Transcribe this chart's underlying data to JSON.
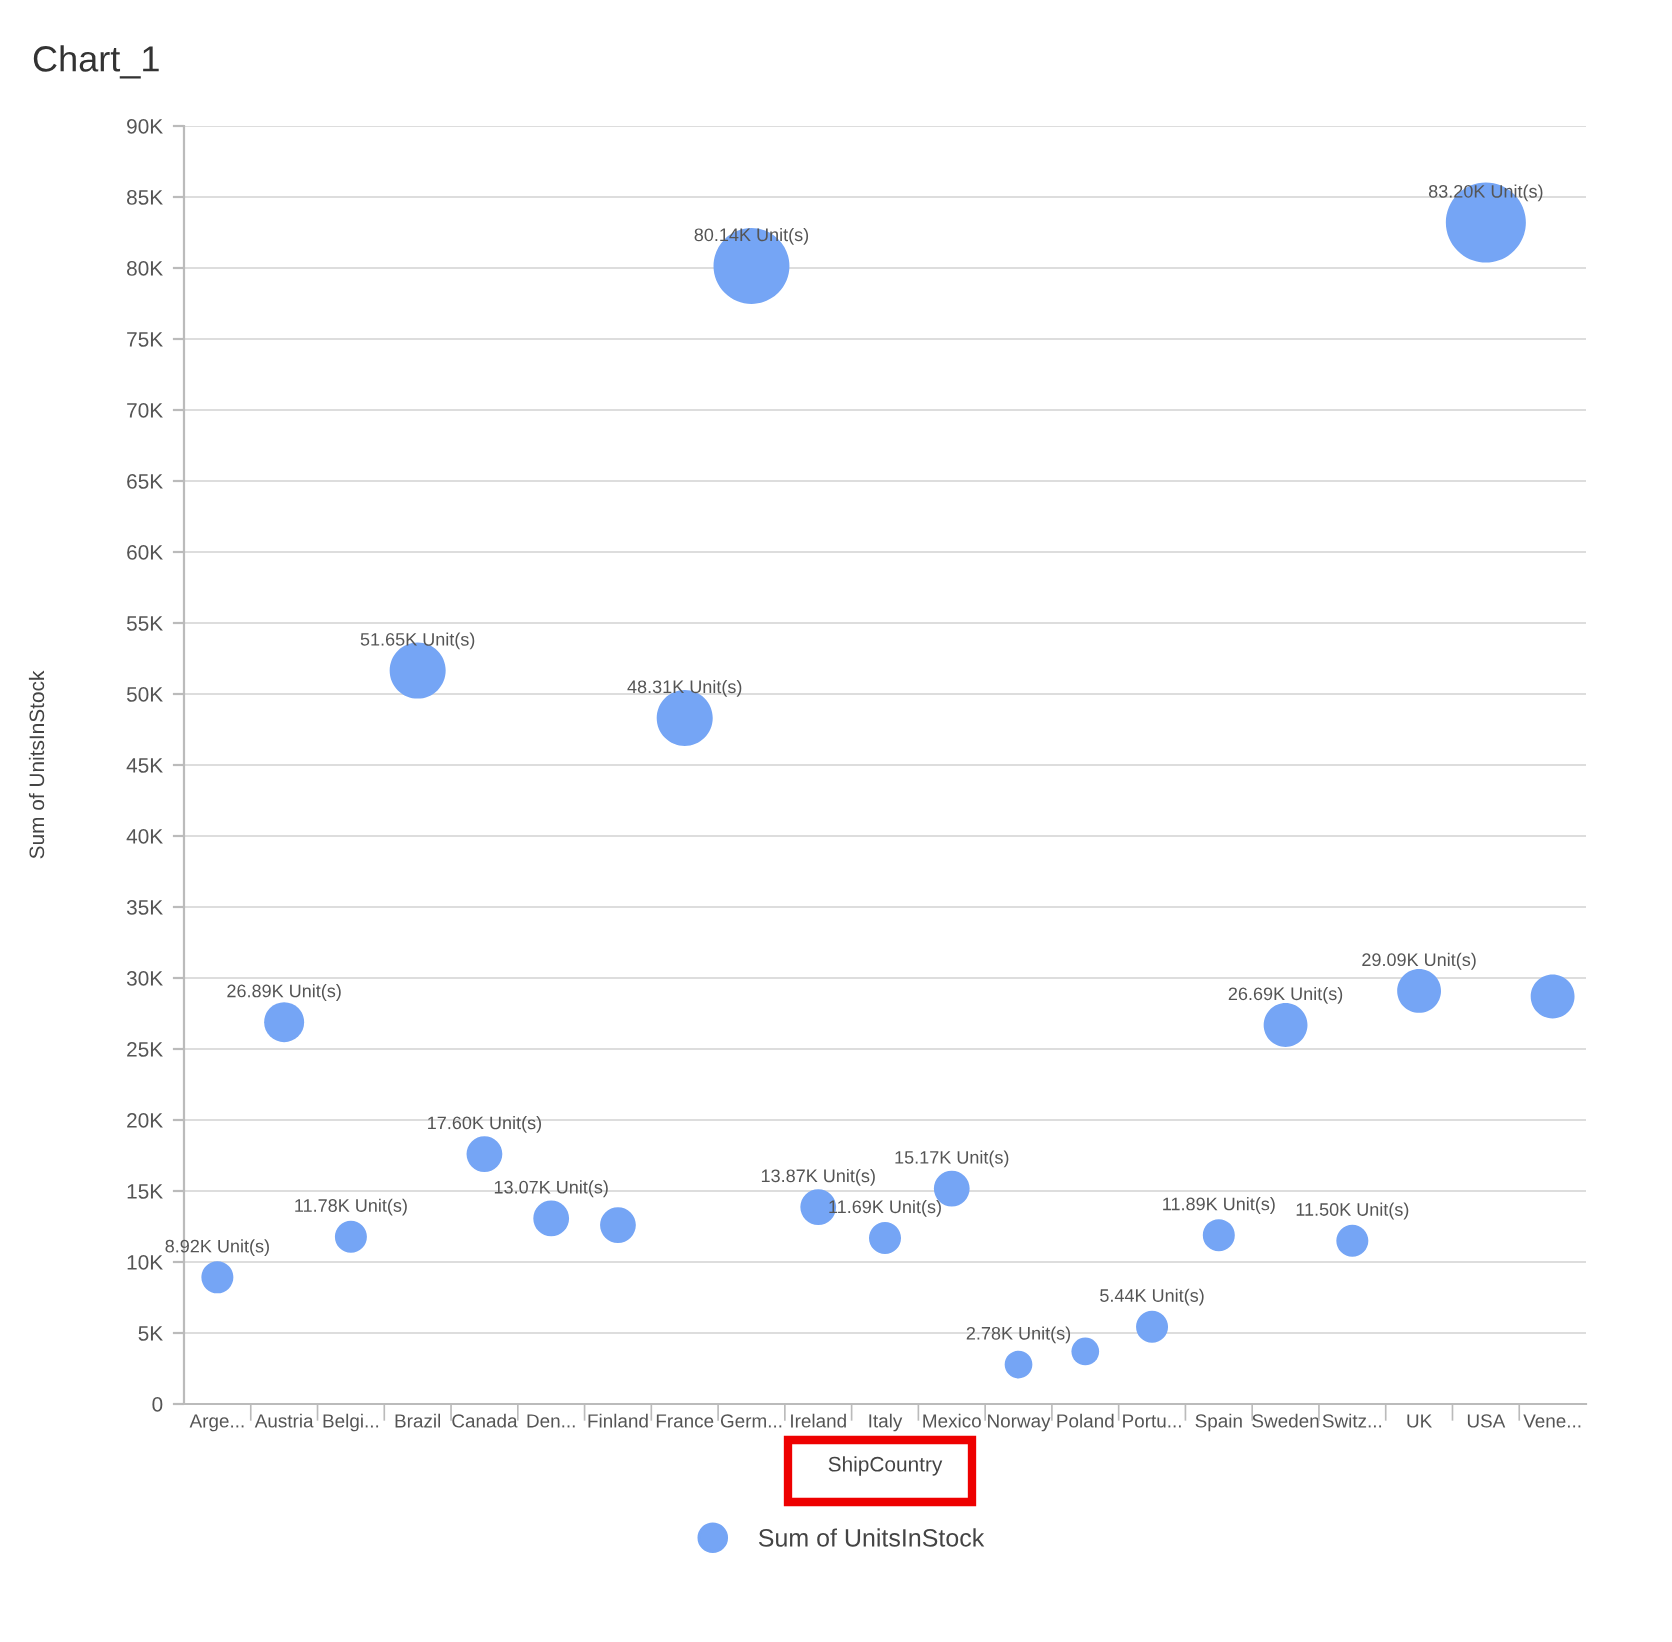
{
  "chart_data": {
    "type": "bubble",
    "title": "Chart_1",
    "xlabel": "ShipCountry",
    "ylabel": "Sum of UnitsInStock",
    "categories": [
      "Arge...",
      "Austria",
      "Belgi...",
      "Brazil",
      "Canada",
      "Den...",
      "Finland",
      "France",
      "Germ...",
      "Ireland",
      "Italy",
      "Mexico",
      "Norway",
      "Poland",
      "Portu...",
      "Spain",
      "Sweden",
      "Switz...",
      "UK",
      "USA",
      "Vene..."
    ],
    "series": [
      {
        "name": "Sum of UnitsInStock",
        "color": "#75a5f5",
        "values": [
          8920,
          26890,
          11780,
          51650,
          17600,
          13070,
          12600,
          48310,
          80140,
          13870,
          11690,
          15170,
          2780,
          3700,
          5440,
          11890,
          26690,
          11500,
          29090,
          83200,
          28700
        ],
        "sizes": [
          0.16,
          0.25,
          0.16,
          0.49,
          0.2,
          0.2,
          0.2,
          0.49,
          0.9,
          0.2,
          0.16,
          0.2,
          0.12,
          0.12,
          0.16,
          0.16,
          0.3,
          0.16,
          0.3,
          1,
          0.3
        ],
        "value_labels": [
          "8.92K Unit(s)",
          "26.89K Unit(s)",
          "11.78K Unit(s)",
          "51.65K Unit(s)",
          "17.60K Unit(s)",
          "13.07K Unit(s)",
          null,
          "48.31K Unit(s)",
          "80.14K Unit(s)",
          "13.87K Unit(s)",
          "11.69K Unit(s)",
          "15.17K Unit(s)",
          "2.78K Unit(s)",
          null,
          "5.44K Unit(s)",
          "11.89K Unit(s)",
          "26.69K Unit(s)",
          "11.50K Unit(s)",
          "29.09K Unit(s)",
          "83.20K Unit(s)",
          null
        ]
      }
    ],
    "ylim": [
      0,
      90000
    ],
    "yticks": [
      0,
      {
        "value": 5000,
        "label": "5K"
      },
      {
        "value": 10000,
        "label": "10K"
      },
      {
        "value": 15000,
        "label": "15K"
      },
      {
        "value": 20000,
        "label": "20K"
      },
      {
        "value": 25000,
        "label": "25K"
      },
      {
        "value": 30000,
        "label": "30K"
      },
      {
        "value": 35000,
        "label": "35K"
      },
      {
        "value": 40000,
        "label": "40K"
      },
      {
        "value": 45000,
        "label": "45K"
      },
      {
        "value": 50000,
        "label": "50K"
      },
      {
        "value": 55000,
        "label": "55K"
      },
      {
        "value": 60000,
        "label": "60K"
      },
      {
        "value": 65000,
        "label": "65K"
      },
      {
        "value": 70000,
        "label": "70K"
      },
      {
        "value": 75000,
        "label": "75K"
      },
      {
        "value": 80000,
        "label": "80K"
      },
      {
        "value": 85000,
        "label": "85K"
      },
      {
        "value": 90000,
        "label": "90K"
      }
    ],
    "grid": "y",
    "legend": "bottom"
  }
}
